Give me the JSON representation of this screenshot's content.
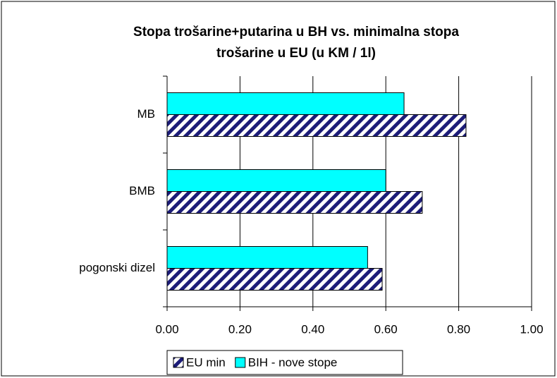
{
  "chart_data": {
    "type": "hbar",
    "title": [
      "Stopa trošarine+putarina u BH vs. minimalna stopa",
      "trošarine u EU (u KM / 1l)"
    ],
    "categories": [
      "MB",
      "BMB",
      "pogonski dizel"
    ],
    "series": [
      {
        "name": "EU min",
        "color": "#1c1c78",
        "pattern": "hatch",
        "values": [
          0.82,
          0.7,
          0.59
        ]
      },
      {
        "name": "BIH - nove stope",
        "color": "#00ffff",
        "values": [
          0.65,
          0.6,
          0.55
        ]
      }
    ],
    "xlim": [
      0,
      1
    ],
    "xticks": [
      {
        "value": 0,
        "label": "0.00"
      },
      {
        "value": 0.2,
        "label": "0.20"
      },
      {
        "value": 0.4,
        "label": "0.40"
      },
      {
        "value": 0.6,
        "label": "0.60"
      },
      {
        "value": 0.8,
        "label": "0.80"
      },
      {
        "value": 1,
        "label": "1.00"
      }
    ],
    "grid": true,
    "legend": "bottom"
  }
}
